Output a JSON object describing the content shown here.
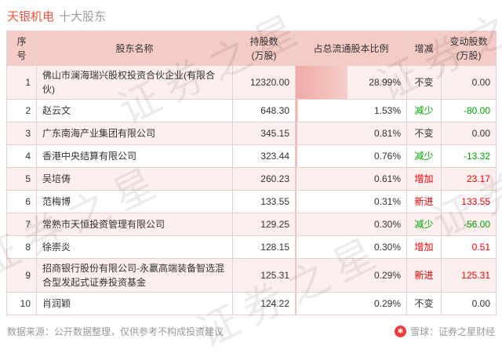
{
  "header": {
    "stock_name": "天银机电",
    "subtitle": "十大股东"
  },
  "watermark": {
    "text": "证券之星"
  },
  "icons": {
    "xueqiu_logo": "✱"
  },
  "chart_data": {
    "type": "table",
    "title": "天银机电 十大股东",
    "columns": [
      "序号",
      "股东名称",
      "持股数\n(万股)",
      "占总流通股本比例",
      "增减",
      "变动股数\n(万股)"
    ],
    "rows": [
      {
        "index": "1",
        "name": "佛山市澜海瑞兴股权投资合伙企业(有限合伙)",
        "shares": "12320.00",
        "pct": "28.99%",
        "pct_value": 28.99,
        "change": "不变",
        "change_color": "black",
        "delta": "0.00",
        "delta_color": "black"
      },
      {
        "index": "2",
        "name": "赵云文",
        "shares": "648.30",
        "pct": "1.53%",
        "pct_value": 1.53,
        "change": "减少",
        "change_color": "green",
        "delta": "-80.00",
        "delta_color": "green"
      },
      {
        "index": "3",
        "name": "广东南海产业集团有限公司",
        "shares": "345.15",
        "pct": "0.81%",
        "pct_value": 0.81,
        "change": "不变",
        "change_color": "black",
        "delta": "0.00",
        "delta_color": "black"
      },
      {
        "index": "4",
        "name": "香港中央结算有限公司",
        "shares": "323.44",
        "pct": "0.76%",
        "pct_value": 0.76,
        "change": "减少",
        "change_color": "green",
        "delta": "-13.32",
        "delta_color": "green"
      },
      {
        "index": "5",
        "name": "吴培俦",
        "shares": "260.23",
        "pct": "0.61%",
        "pct_value": 0.61,
        "change": "增加",
        "change_color": "red",
        "delta": "23.17",
        "delta_color": "red"
      },
      {
        "index": "6",
        "name": "范梅博",
        "shares": "133.55",
        "pct": "0.31%",
        "pct_value": 0.31,
        "change": "新进",
        "change_color": "red",
        "delta": "133.55",
        "delta_color": "red"
      },
      {
        "index": "7",
        "name": "常熟市天恒投资管理有限公司",
        "shares": "129.25",
        "pct": "0.30%",
        "pct_value": 0.3,
        "change": "减少",
        "change_color": "green",
        "delta": "-56.00",
        "delta_color": "green"
      },
      {
        "index": "8",
        "name": "徐崇炎",
        "shares": "128.15",
        "pct": "0.30%",
        "pct_value": 0.3,
        "change": "增加",
        "change_color": "red",
        "delta": "0.51",
        "delta_color": "red"
      },
      {
        "index": "9",
        "name": "招商银行股份有限公司-永赢高端装备智选混合型发起式证券投资基金",
        "shares": "125.31",
        "pct": "0.29%",
        "pct_value": 0.29,
        "change": "新进",
        "change_color": "red",
        "delta": "125.31",
        "delta_color": "red"
      },
      {
        "index": "10",
        "name": "肖润颖",
        "shares": "124.22",
        "pct": "0.29%",
        "pct_value": 0.29,
        "change": "不变",
        "change_color": "black",
        "delta": "0.00",
        "delta_color": "black"
      }
    ]
  },
  "footer": {
    "source": "数据来源：公开数据整理，仅供参考不构成投资建议",
    "credit": "雪球：证券之星财经"
  },
  "colors": {
    "title_red": "#f0543e",
    "header_pink": "#f5cbc6",
    "row_pink": "#fdefed",
    "bar_pink": "#eeaba6",
    "up_red": "#fd0000",
    "down_green": "#00a400",
    "logo_red": "#f23b3b"
  }
}
